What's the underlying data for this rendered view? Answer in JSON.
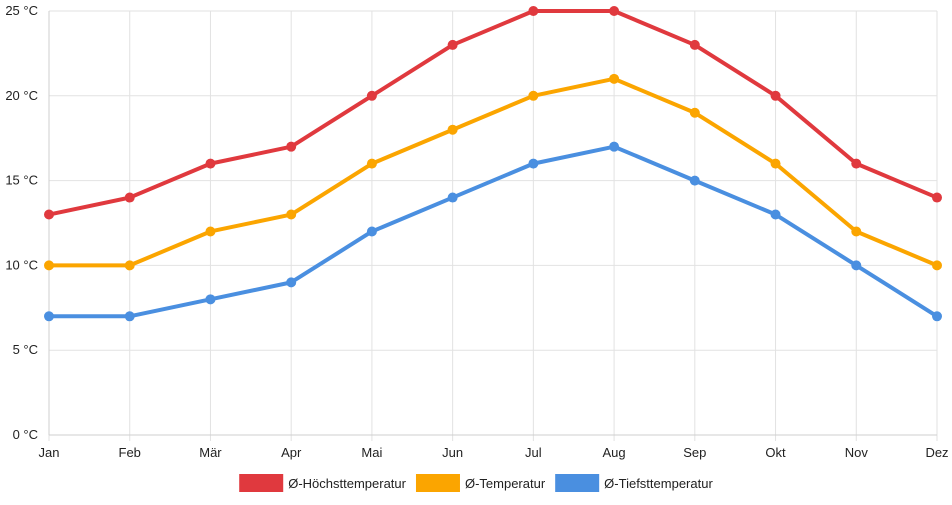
{
  "chart_data": {
    "type": "line",
    "title": "",
    "xlabel": "",
    "ylabel": "",
    "categories": [
      "Jan",
      "Feb",
      "Mär",
      "Apr",
      "Mai",
      "Jun",
      "Jul",
      "Aug",
      "Sep",
      "Okt",
      "Nov",
      "Dez"
    ],
    "ylim": [
      0,
      25
    ],
    "yticks": [
      0,
      5,
      10,
      15,
      20,
      25
    ],
    "yunit": " °C",
    "grid": true,
    "legend_position": "bottom",
    "series": [
      {
        "name": "Ø-Höchsttemperatur",
        "color": "#e0393e",
        "values": [
          13,
          14,
          16,
          17,
          20,
          23,
          25,
          25,
          23,
          20,
          16,
          14
        ]
      },
      {
        "name": "Ø-Temperatur",
        "color": "#fba500",
        "values": [
          10,
          10,
          12,
          13,
          16,
          18,
          20,
          21,
          19,
          16,
          12,
          10
        ]
      },
      {
        "name": "Ø-Tiefsttemperatur",
        "color": "#4a8fe0",
        "values": [
          7,
          7,
          8,
          9,
          12,
          14,
          16,
          17,
          15,
          13,
          10,
          7
        ]
      }
    ]
  }
}
